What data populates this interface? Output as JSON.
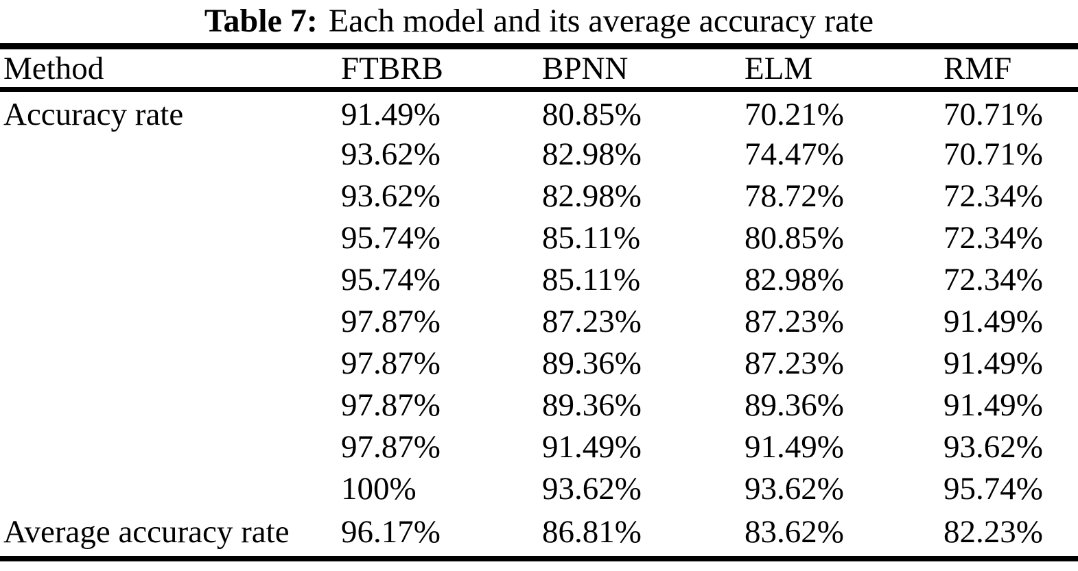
{
  "table": {
    "caption": {
      "label": "Table 7:",
      "text": "Each model and its average accuracy rate"
    },
    "columns": [
      "Method",
      "FTBRB",
      "BPNN",
      "ELM",
      "RMF"
    ],
    "row_group_label": "Accuracy rate",
    "rows": [
      [
        "91.49%",
        "80.85%",
        "70.21%",
        "70.71%"
      ],
      [
        "93.62%",
        "82.98%",
        "74.47%",
        "70.71%"
      ],
      [
        "93.62%",
        "82.98%",
        "78.72%",
        "72.34%"
      ],
      [
        "95.74%",
        "85.11%",
        "80.85%",
        "72.34%"
      ],
      [
        "95.74%",
        "85.11%",
        "82.98%",
        "72.34%"
      ],
      [
        "97.87%",
        "87.23%",
        "87.23%",
        "91.49%"
      ],
      [
        "97.87%",
        "89.36%",
        "87.23%",
        "91.49%"
      ],
      [
        "97.87%",
        "89.36%",
        "89.36%",
        "91.49%"
      ],
      [
        "97.87%",
        "91.49%",
        "91.49%",
        "93.62%"
      ],
      [
        "100%",
        "93.62%",
        "93.62%",
        "95.74%"
      ]
    ],
    "average_label": "Average accuracy rate",
    "average_values": [
      "96.17%",
      "86.81%",
      "83.62%",
      "82.23%"
    ],
    "colors": {
      "text": "#000000",
      "background": "#ffffff",
      "rule": "#000000"
    }
  }
}
